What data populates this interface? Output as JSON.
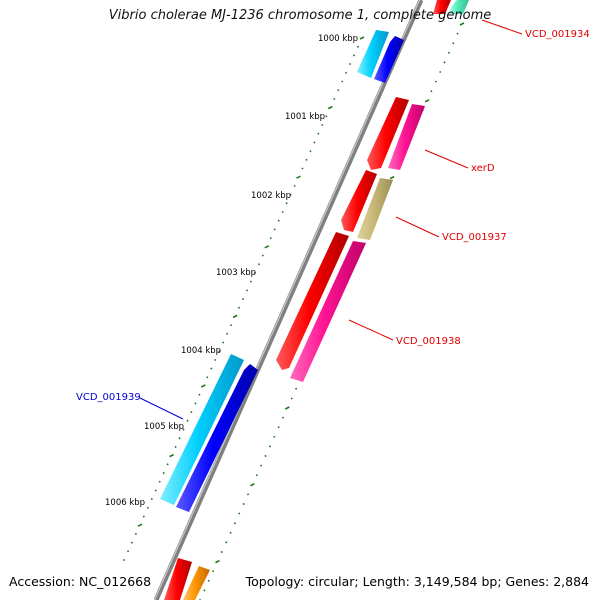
{
  "header": {
    "title": "Vibrio cholerae MJ-1236 chromosome 1, complete genome"
  },
  "footer": {
    "accession": "Accession: NC_012668",
    "topology": "Topology: circular; Length: 3,149,584 bp; Genes: 2,884"
  },
  "ruler": {
    "ticks": [
      "1000 kbp",
      "1001 kbp",
      "1002 kbp",
      "1003 kbp",
      "1004 kbp",
      "1005 kbp",
      "1006 kbp"
    ]
  },
  "gene_labels": {
    "vcd_001934": "VCD_001934",
    "xerd": "xerD",
    "vcd_001937": "VCD_001937",
    "vcd_001938": "VCD_001938",
    "vcd_001939": "VCD_001939"
  },
  "colors": {
    "forward_label": "#dd0000",
    "reverse_label": "#0000cc",
    "backbone": "#808080",
    "tick": "#1a7a1a"
  }
}
